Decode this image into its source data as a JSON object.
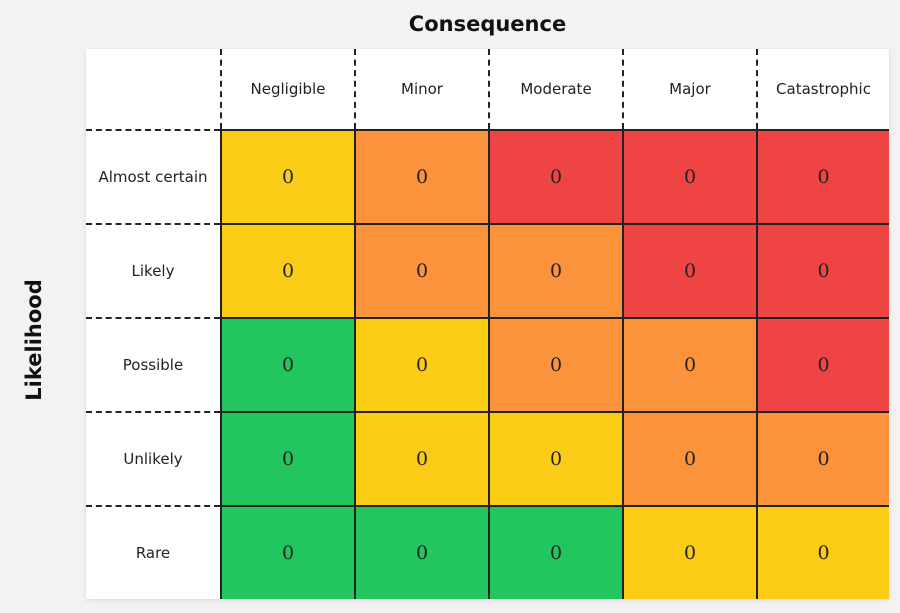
{
  "axis_titles": {
    "consequence": "Consequence",
    "likelihood": "Likelihood"
  },
  "consequence_levels": [
    "Negligible",
    "Minor",
    "Moderate",
    "Major",
    "Catastrophic"
  ],
  "likelihood_levels": [
    "Almost certain",
    "Likely",
    "Possible",
    "Unlikely",
    "Rare"
  ],
  "colors": {
    "green": "#22c55e",
    "yellow": "#facc15",
    "orange": "#fb923c",
    "red": "#ef4444"
  },
  "cells": [
    [
      {
        "value": "0",
        "risk": "yellow"
      },
      {
        "value": "0",
        "risk": "orange"
      },
      {
        "value": "0",
        "risk": "red"
      },
      {
        "value": "0",
        "risk": "red"
      },
      {
        "value": "0",
        "risk": "red"
      }
    ],
    [
      {
        "value": "0",
        "risk": "yellow"
      },
      {
        "value": "0",
        "risk": "orange"
      },
      {
        "value": "0",
        "risk": "orange"
      },
      {
        "value": "0",
        "risk": "red"
      },
      {
        "value": "0",
        "risk": "red"
      }
    ],
    [
      {
        "value": "0",
        "risk": "green"
      },
      {
        "value": "0",
        "risk": "yellow"
      },
      {
        "value": "0",
        "risk": "orange"
      },
      {
        "value": "0",
        "risk": "orange"
      },
      {
        "value": "0",
        "risk": "red"
      }
    ],
    [
      {
        "value": "0",
        "risk": "green"
      },
      {
        "value": "0",
        "risk": "yellow"
      },
      {
        "value": "0",
        "risk": "yellow"
      },
      {
        "value": "0",
        "risk": "orange"
      },
      {
        "value": "0",
        "risk": "orange"
      }
    ],
    [
      {
        "value": "0",
        "risk": "green"
      },
      {
        "value": "0",
        "risk": "green"
      },
      {
        "value": "0",
        "risk": "green"
      },
      {
        "value": "0",
        "risk": "yellow"
      },
      {
        "value": "0",
        "risk": "yellow"
      }
    ]
  ]
}
